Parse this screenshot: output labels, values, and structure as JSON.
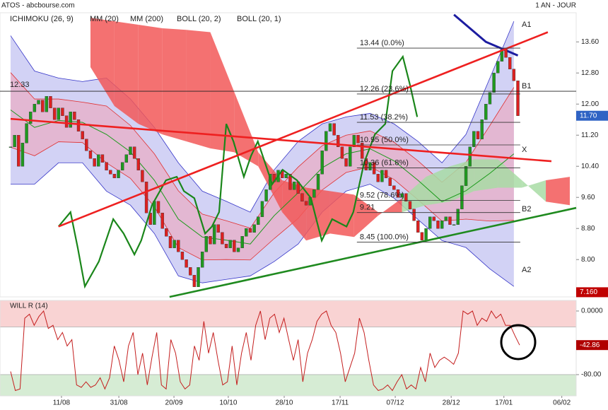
{
  "chart_data": [
    {
      "type": "candlestick",
      "title": "ATOS - abcbourse.com",
      "subtitle": "1 AN - JOUR",
      "xlim": [
        -2.65,
        141.6
      ],
      "xticks": [
        {
          "value": 12.74,
          "label": "11/08"
        },
        {
          "value": 27.1,
          "label": "31/08"
        },
        {
          "value": 40.9,
          "label": "20/09"
        },
        {
          "value": 54.5,
          "label": "10/10"
        },
        {
          "value": 68.5,
          "label": "28/10"
        },
        {
          "value": 82.5,
          "label": "17/11"
        },
        {
          "value": 96.3,
          "label": "07/12"
        },
        {
          "value": 110.3,
          "label": "28/12"
        },
        {
          "value": 123.5,
          "label": "17/01"
        },
        {
          "value": 138,
          "label": "06/02"
        }
      ],
      "ylim": [
        7.04,
        14.35
      ],
      "yticks": [
        {
          "value": 13.6,
          "label": "13.60"
        },
        {
          "value": 12.8,
          "label": "12.80"
        },
        {
          "value": 12,
          "label": "12.00"
        },
        {
          "value": 11.2,
          "label": "11.20"
        },
        {
          "value": 10.4,
          "label": "10.40"
        },
        {
          "value": 9.6,
          "label": "9.60"
        },
        {
          "value": 8.8,
          "label": "8.80"
        },
        {
          "value": 8,
          "label": "8.00"
        }
      ],
      "closes": [
        10.9,
        11.2,
        10.4,
        11.0,
        11.5,
        11.8,
        12.0,
        12.1,
        11.8,
        12.2,
        11.9,
        11.6,
        11.9,
        11.7,
        11.4,
        11.8,
        11.6,
        11.3,
        11.1,
        10.8,
        10.6,
        10.4,
        10.7,
        10.5,
        10.3,
        10.2,
        10.1,
        10.3,
        10.5,
        10.7,
        10.9,
        10.6,
        10.3,
        10.0,
        9.2,
        8.9,
        9.5,
        9.2,
        8.8,
        8.6,
        8.3,
        8.5,
        8.2,
        8.0,
        7.8,
        7.6,
        7.3,
        7.8,
        8.2,
        8.6,
        8.4,
        8.9,
        8.7,
        8.4,
        8.3,
        8.5,
        8.2,
        8.3,
        8.6,
        8.8,
        8.7,
        8.9,
        9.1,
        9.5,
        9.8,
        10.2,
        10.0,
        10.3,
        10.1,
        10.2,
        9.8,
        10.0,
        9.7,
        9.5,
        9.4,
        9.6,
        9.8,
        10.2,
        10.8,
        11.3,
        11.5,
        11.2,
        10.9,
        10.6,
        10.4,
        10.9,
        11.2,
        11.0,
        10.6,
        10.3,
        10.5,
        10.2,
        10.0,
        10.3,
        10.1,
        9.9,
        9.8,
        9.6,
        9.7,
        9.5,
        9.3,
        9.0,
        8.7,
        8.5,
        8.8,
        9.1,
        9.0,
        8.8,
        9.0,
        9.1,
        8.9,
        8.9,
        9.3,
        9.9,
        10.4,
        10.9,
        11.3,
        11.1,
        11.6,
        12.0,
        12.3,
        12.8,
        13.1,
        13.4,
        13.2,
        12.9,
        12.6,
        11.7
      ],
      "up_color": "#1f9a1f",
      "down_color": "#dd2020",
      "ichimoku": {
        "name": "ICHIMOKU (26, 9)",
        "color": "#1a861a",
        "cloud_x": [
          20,
          26,
          32,
          38,
          44,
          50,
          56,
          62,
          68,
          74,
          80,
          86,
          92,
          98,
          104,
          110,
          116,
          122,
          128,
          134,
          140
        ],
        "span_a": [
          12.95,
          11.95,
          11.49,
          11.22,
          11.04,
          10.86,
          10.76,
          10.4,
          9.22,
          8.49,
          8.67,
          8.58,
          9.13,
          9.58,
          10.13,
          10.4,
          10.58,
          10.58,
          10.04,
          9.49,
          9.4
        ],
        "span_b": [
          14.22,
          14.13,
          14.04,
          13.95,
          13.91,
          13.85,
          12.31,
          10.76,
          10.04,
          9.85,
          9.76,
          9.67,
          9.22,
          9.22,
          9.4,
          9.49,
          9.76,
          9.85,
          9.85,
          10.04,
          10.13
        ],
        "up_color": "#a8dca4",
        "down_color": "#f25858",
        "lagging_x": [
          12.0,
          15.0,
          16.8,
          18.6,
          22.1,
          25.7,
          28.3,
          31.0,
          32.7,
          35.4,
          38.9,
          41.6,
          43.4,
          46.0,
          48.7,
          50.4,
          52.2,
          54.0,
          55.8,
          58.4,
          60.2,
          61.9,
          63.7,
          65.5,
          68.1,
          71.7,
          75.2,
          77.9,
          80.5,
          84.1,
          85.8,
          88.5,
          91.2,
          93.8,
          95.6,
          98.2,
          100.0,
          101.8
        ],
        "lagging": [
          8.85,
          9.22,
          8.31,
          7.31,
          7.95,
          9.04,
          8.67,
          8.13,
          8.49,
          9.4,
          10.04,
          10.13,
          9.76,
          9.58,
          8.67,
          8.85,
          9.22,
          11.49,
          11.04,
          10.13,
          10.67,
          11.04,
          10.49,
          9.94,
          10.31,
          10.04,
          9.58,
          8.49,
          9.04,
          8.85,
          9.22,
          10.49,
          11.22,
          11.49,
          12.85,
          13.22,
          12.49,
          11.67
        ]
      },
      "bollinger": [
        {
          "name": "BOLL (20, 2)",
          "color": "#3535c8",
          "fill": "#cacaf3",
          "x": [
            0,
            6,
            12,
            18,
            24,
            30,
            36,
            42,
            48,
            54,
            60,
            66,
            72,
            78,
            84,
            90,
            96,
            102,
            108,
            114,
            120,
            126
          ],
          "upper": [
            13.76,
            12.85,
            12.67,
            12.58,
            12.67,
            12.13,
            11.4,
            10.49,
            9.76,
            9.5,
            9.22,
            10.31,
            11.04,
            11.49,
            11.67,
            11.76,
            11.49,
            11.04,
            10.49,
            11.22,
            12.67,
            14.13
          ],
          "lower": [
            9.94,
            9.94,
            10.49,
            10.49,
            9.76,
            9.4,
            8.67,
            7.58,
            7.4,
            7.49,
            7.58,
            7.95,
            8.4,
            9.22,
            9.76,
            9.94,
            9.58,
            9.03,
            8.49,
            8.31,
            7.76,
            7.31
          ]
        },
        {
          "name": "BOLL (20, 1)",
          "color": "#e03030",
          "fill": "#e6b3cb",
          "x": [
            0,
            6,
            12,
            18,
            24,
            30,
            36,
            42,
            48,
            54,
            60,
            66,
            72,
            78,
            84,
            90,
            96,
            102,
            108,
            114,
            120,
            126
          ],
          "upper": [
            12.81,
            12.13,
            12.13,
            12.05,
            11.95,
            11.45,
            10.72,
            9.77,
            9.17,
            9.0,
            8.81,
            9.72,
            10.38,
            10.93,
            11.2,
            11.31,
            11.02,
            10.54,
            9.99,
            10.5,
            11.45,
            12.43
          ],
          "lower": [
            10.89,
            10.67,
            11.03,
            11.01,
            10.49,
            10.09,
            9.36,
            8.31,
            7.99,
            8.0,
            7.99,
            8.54,
            9.06,
            9.79,
            10.24,
            10.39,
            10.06,
            9.54,
            8.99,
            9.04,
            8.99,
            9.01
          ]
        }
      ],
      "moving_averages": [
        {
          "name": "MM (20)",
          "color": "#1a9a1a",
          "width": 1,
          "x": [
            0,
            6,
            12,
            18,
            24,
            30,
            36,
            42,
            48,
            54,
            60,
            66,
            72,
            78,
            84,
            90,
            96,
            102,
            108,
            114,
            120,
            126
          ],
          "values": [
            11.85,
            11.4,
            11.58,
            11.53,
            11.22,
            10.77,
            10.04,
            9.04,
            8.58,
            8.5,
            8.4,
            9.13,
            9.72,
            10.36,
            10.72,
            10.85,
            10.54,
            10.04,
            9.49,
            9.77,
            10.22,
            10.72
          ]
        },
        {
          "name": "MM (200)",
          "color": "#1c1ca0",
          "width": 3,
          "x": [
            111,
            119,
            127
          ],
          "values": [
            14.3,
            13.6,
            13.25
          ]
        }
      ],
      "trendlines": [
        {
          "color": "#ee2020",
          "x": [
            12.0,
            134.5
          ],
          "y": [
            8.85,
            13.85
          ]
        },
        {
          "color": "#ee2020",
          "x": [
            0,
            135.4
          ],
          "y": [
            11.62,
            10.53
          ]
        },
        {
          "color": "#1f8a1f",
          "x": [
            39.8,
            141.6
          ],
          "y": [
            7.04,
            9.33
          ]
        }
      ],
      "fibonacci": {
        "x": [
          86.7,
          127.6
        ],
        "levels": [
          {
            "value": 13.44,
            "label": "13.44 (0.0%)"
          },
          {
            "value": 12.26,
            "label": "12.26 (23.6%)"
          },
          {
            "value": 11.53,
            "label": "11.53 (38.2%)"
          },
          {
            "value": 10.95,
            "label": "10.95 (50.0%)"
          },
          {
            "value": 10.36,
            "label": "10.36 (61.8%)"
          },
          {
            "value": 9.52,
            "label": "9.52 (78.6%)"
          },
          {
            "value": 9.21,
            "label": "9.21"
          },
          {
            "value": 8.45,
            "label": "8.45 (100.0%)"
          }
        ]
      },
      "levels": [
        {
          "value": 12.33,
          "label": "12.33"
        }
      ],
      "cloud_labels": [
        {
          "text": "A1",
          "color": "#1c1ca0"
        },
        {
          "text": "B1",
          "color": "#dd2020"
        },
        {
          "text": "X",
          "color": "#1a9a1a"
        },
        {
          "text": "B2",
          "color": "#dd2020"
        },
        {
          "text": "A2",
          "color": "#1c1ca0"
        }
      ],
      "price_tags": [
        {
          "value": 11.7,
          "label": "11.70",
          "color": "#2f63c4"
        },
        {
          "value": 7.16,
          "label": "7.160",
          "color": "#c00000"
        }
      ]
    },
    {
      "type": "line",
      "title": "WILL R (14)",
      "color": "#c41e1e",
      "ylim": [
        -106.7,
        13.3
      ],
      "yticks": [
        {
          "value": 0,
          "label": "0.0000"
        },
        {
          "value": -80,
          "label": "-80.00"
        }
      ],
      "zones": [
        {
          "from": -20,
          "to": 13.3,
          "color": "#f9d3d3"
        },
        {
          "from": -106.7,
          "to": -80,
          "color": "#d6ecd4"
        }
      ],
      "tag_color": "#b00000",
      "values": [
        -76,
        -100,
        -98,
        -9,
        -4,
        -18,
        -7,
        0,
        -22,
        -18,
        -36,
        -27,
        -44,
        -36,
        -93,
        -96,
        -89,
        -96,
        -93,
        -84,
        -98,
        -84,
        -44,
        -62,
        -89,
        -44,
        -27,
        -80,
        -53,
        -93,
        -58,
        -27,
        -93,
        -98,
        -36,
        -53,
        -89,
        -98,
        -93,
        -44,
        -62,
        -13,
        -53,
        -27,
        -62,
        -93,
        -89,
        -44,
        -93,
        -53,
        -27,
        -62,
        -18,
        0,
        -36,
        -9,
        -4,
        -27,
        -9,
        -36,
        -62,
        -36,
        -89,
        -53,
        -36,
        -13,
        -4,
        0,
        -18,
        -27,
        -53,
        -89,
        -71,
        -53,
        -9,
        -27,
        -62,
        -93,
        -100,
        -98,
        -93,
        -100,
        -89,
        -80,
        -98,
        -93,
        -98,
        -71,
        -89,
        -53,
        -71,
        -62,
        -58,
        -62,
        -67,
        -53,
        0,
        -4,
        0,
        -18,
        -9,
        -13,
        0,
        -9,
        -4,
        -18,
        -18,
        -31,
        -42.86
      ]
    }
  ]
}
